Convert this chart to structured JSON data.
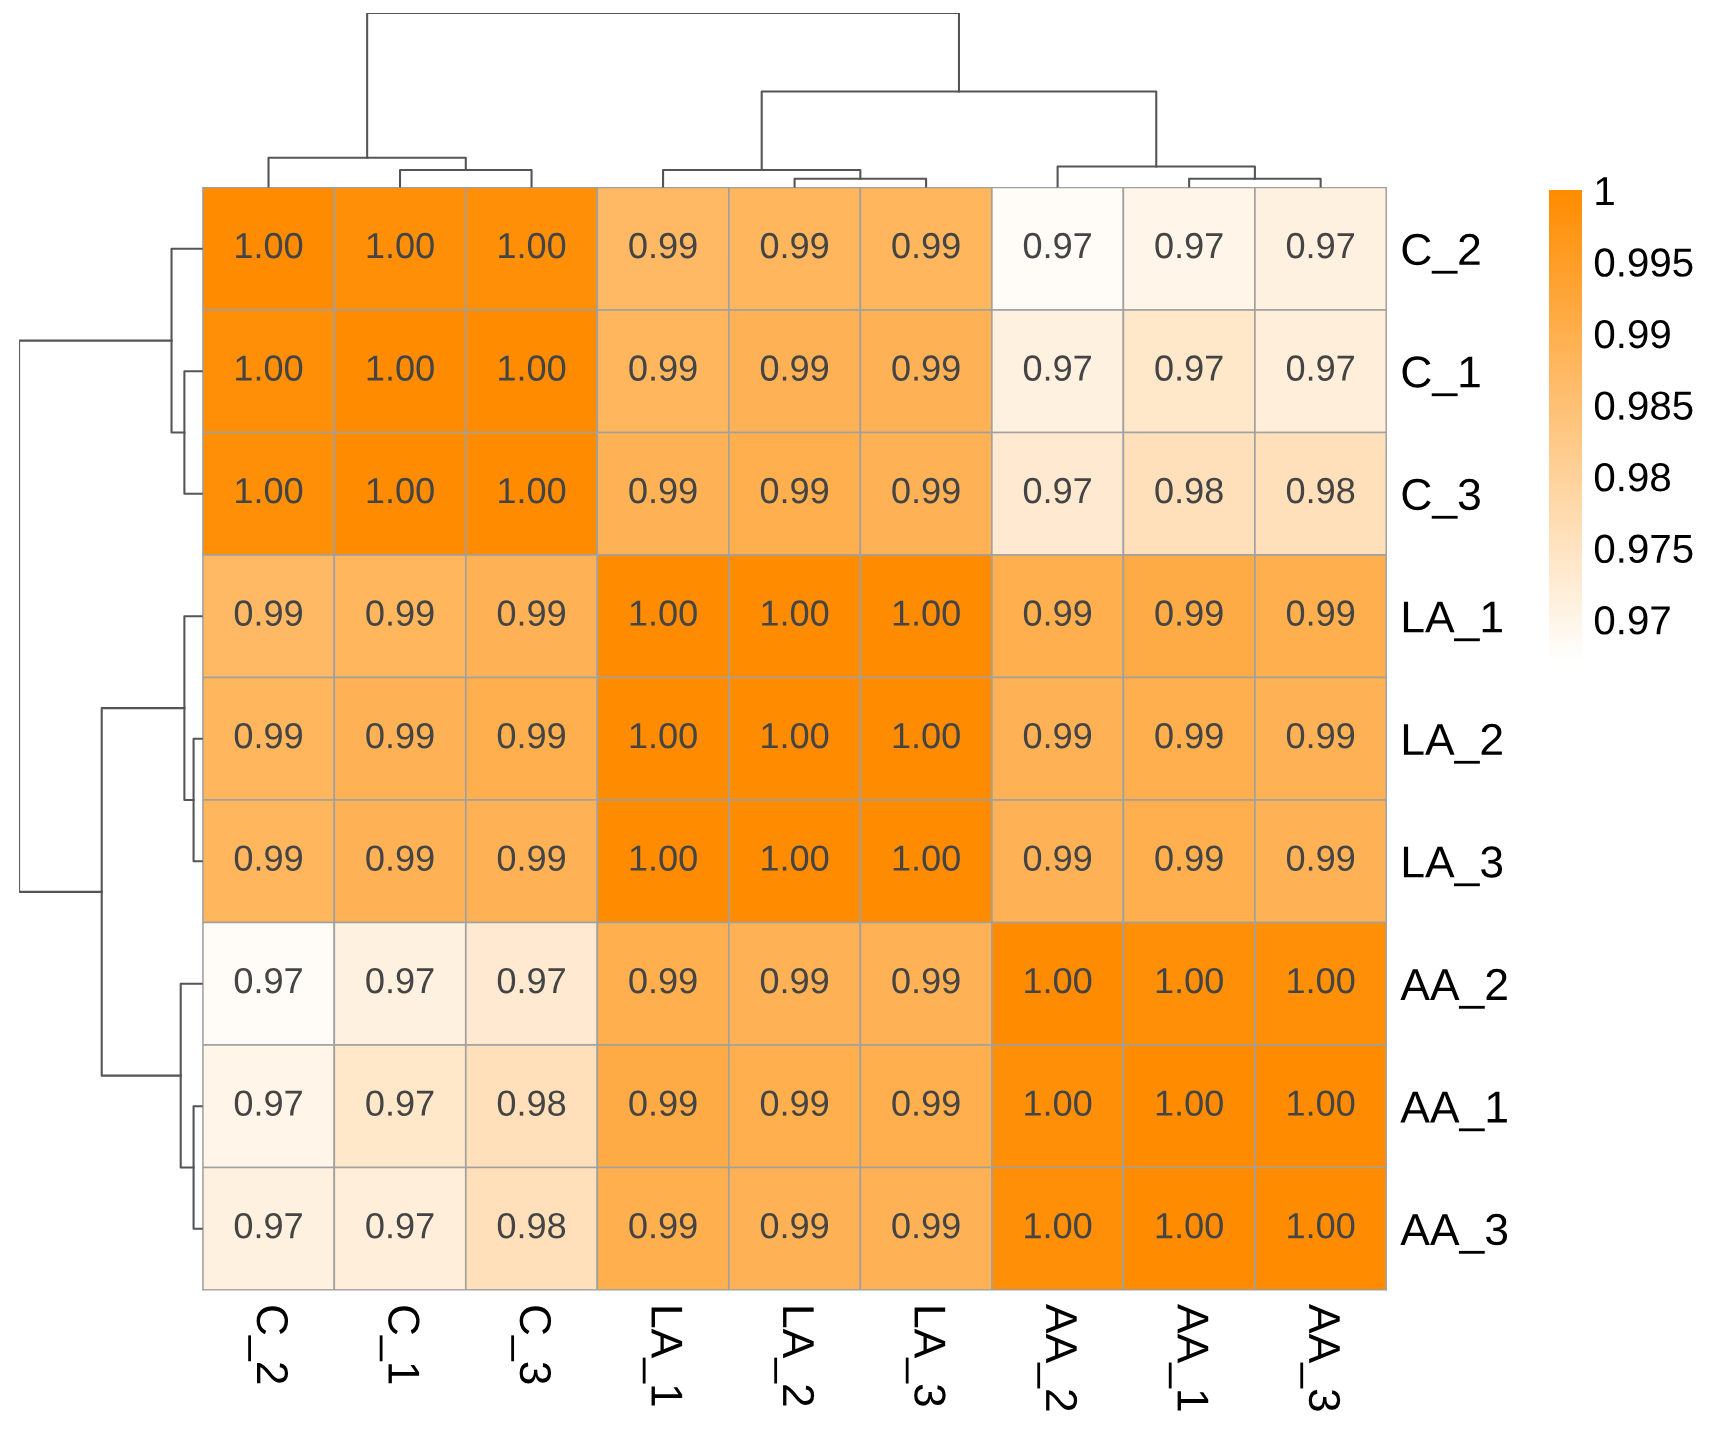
{
  "chart_data": {
    "type": "heatmap",
    "categories": [
      "C_2",
      "C_1",
      "C_3",
      "LA_1",
      "LA_2",
      "LA_3",
      "AA_2",
      "AA_1",
      "AA_3"
    ],
    "y_categories": [
      "C_2",
      "C_1",
      "C_3",
      "LA_1",
      "LA_2",
      "LA_3",
      "AA_2",
      "AA_1",
      "AA_3"
    ],
    "cells": [
      [
        1,
        0.999,
        0.999,
        0.987,
        0.988,
        0.988,
        0.968,
        0.97,
        0.971
      ],
      [
        0.999,
        1,
        1,
        0.988,
        0.989,
        0.989,
        0.971,
        0.974,
        0.972
      ],
      [
        0.999,
        1,
        1,
        0.989,
        0.99,
        0.989,
        0.973,
        0.976,
        0.976
      ],
      [
        0.987,
        0.988,
        0.989,
        1,
        1,
        1,
        0.99,
        0.991,
        0.99
      ],
      [
        0.988,
        0.989,
        0.99,
        1,
        1,
        1,
        0.989,
        0.99,
        0.989
      ],
      [
        0.988,
        0.989,
        0.989,
        1,
        1,
        1,
        0.989,
        0.99,
        0.989
      ],
      [
        0.968,
        0.971,
        0.973,
        0.99,
        0.989,
        0.989,
        1,
        0.999,
        0.999
      ],
      [
        0.97,
        0.974,
        0.976,
        0.991,
        0.99,
        0.99,
        0.999,
        1,
        1
      ],
      [
        0.971,
        0.972,
        0.976,
        0.99,
        0.989,
        0.989,
        0.999,
        1,
        1
      ]
    ],
    "cell_labels": [
      [
        "1.00",
        "1.00",
        "1.00",
        "0.99",
        "0.99",
        "0.99",
        "0.97",
        "0.97",
        "0.97"
      ],
      [
        "1.00",
        "1.00",
        "1.00",
        "0.99",
        "0.99",
        "0.99",
        "0.97",
        "0.97",
        "0.97"
      ],
      [
        "1.00",
        "1.00",
        "1.00",
        "0.99",
        "0.99",
        "0.99",
        "0.97",
        "0.98",
        "0.98"
      ],
      [
        "0.99",
        "0.99",
        "0.99",
        "1.00",
        "1.00",
        "1.00",
        "0.99",
        "0.99",
        "0.99"
      ],
      [
        "0.99",
        "0.99",
        "0.99",
        "1.00",
        "1.00",
        "1.00",
        "0.99",
        "0.99",
        "0.99"
      ],
      [
        "0.99",
        "0.99",
        "0.99",
        "1.00",
        "1.00",
        "1.00",
        "0.99",
        "0.99",
        "0.99"
      ],
      [
        "0.97",
        "0.97",
        "0.97",
        "0.99",
        "0.99",
        "0.99",
        "1.00",
        "1.00",
        "1.00"
      ],
      [
        "0.97",
        "0.97",
        "0.98",
        "0.99",
        "0.99",
        "0.99",
        "1.00",
        "1.00",
        "1.00"
      ],
      [
        "0.97",
        "0.97",
        "0.98",
        "0.99",
        "0.99",
        "0.99",
        "1.00",
        "1.00",
        "1.00"
      ]
    ],
    "colors": [
      "#ffffff",
      "#ff8c00"
    ],
    "clim": [
      0.967,
      1
    ],
    "cticks": [
      0.97,
      0.975,
      0.98,
      0.985,
      0.99,
      0.995,
      1
    ]
  }
}
